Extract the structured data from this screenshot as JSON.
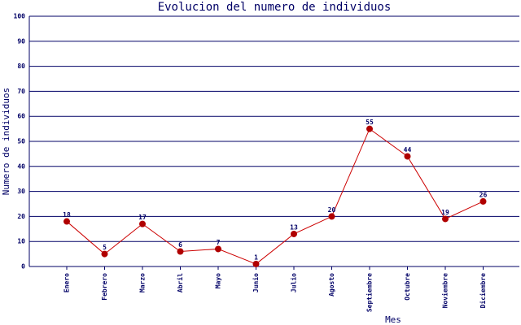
{
  "chart_data": {
    "type": "line",
    "title": "Evolucion del numero de individuos",
    "x_label": "Mes",
    "y_label": "Numero de individuos",
    "categories": [
      "Enero",
      "Febrero",
      "Marzo",
      "Abril",
      "Mayo",
      "Junio",
      "Julio",
      "Agosto",
      "Septiembre",
      "Octubre",
      "Noviembre",
      "Diciembre"
    ],
    "values": [
      18,
      5,
      17,
      6,
      7,
      1,
      13,
      20,
      55,
      44,
      19,
      26
    ],
    "color": "#cc0000",
    "marker_color": "#b00000",
    "ylim": [
      0,
      100
    ],
    "yticks": [
      0,
      10,
      20,
      30,
      40,
      50,
      60,
      70,
      80,
      90,
      100
    ],
    "grid": true
  }
}
